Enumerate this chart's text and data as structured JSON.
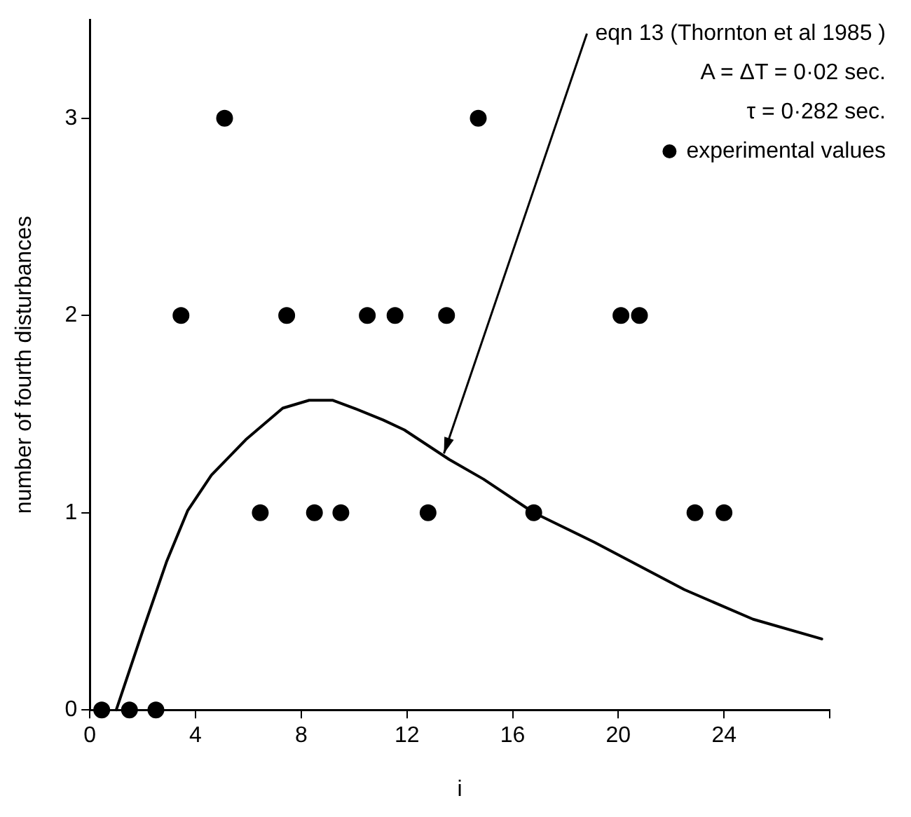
{
  "chart_data": {
    "type": "scatter",
    "xlabel": "i",
    "ylabel": "number of fourth disturbances",
    "xlim": [
      0,
      28
    ],
    "xticks": [
      0,
      4,
      8,
      12,
      16,
      20,
      24,
      {
        "value": 28,
        "label": null
      }
    ],
    "ylim": [
      0,
      3.5
    ],
    "yticks": [
      0,
      1,
      2,
      3
    ],
    "grid": false,
    "legend": "top right",
    "marker": "circle",
    "series": [
      {
        "name": "experimental values",
        "color": "#000000",
        "x": [
          0.45,
          1.5,
          2.5,
          3.45,
          5.1,
          6.45,
          7.45,
          8.5,
          9.5,
          10.5,
          11.55,
          12.8,
          13.5,
          14.7,
          16.8,
          20.1,
          20.8,
          22.9,
          24.0
        ],
        "values": [
          0,
          0,
          0,
          2,
          3,
          1,
          2,
          1,
          1,
          2,
          2,
          1,
          2,
          3,
          1,
          2,
          2,
          1,
          1
        ]
      },
      {
        "type": "line",
        "color": "#000000",
        "marker": "none",
        "line_style": "solid",
        "x": [
          1.0,
          2.0,
          2.9,
          3.7,
          4.6,
          5.9,
          7.3,
          8.3,
          9.2,
          10.0,
          11.1,
          11.9,
          13.6,
          14.9,
          16.8,
          19.1,
          22.5,
          25.1,
          27.7
        ],
        "values": [
          0,
          0.4,
          0.75,
          1.01,
          1.19,
          1.37,
          1.53,
          1.57,
          1.57,
          1.53,
          1.47,
          1.42,
          1.27,
          1.17,
          1.0,
          0.85,
          0.61,
          0.46,
          0.36
        ]
      }
    ],
    "annotations": [
      {
        "text": "eqn 13 (Thornton et al 1985 )",
        "x": 13.4,
        "y": 1.3
      },
      "A = ΔT = 0·02 sec.",
      "τ = 0·282 sec."
    ]
  }
}
